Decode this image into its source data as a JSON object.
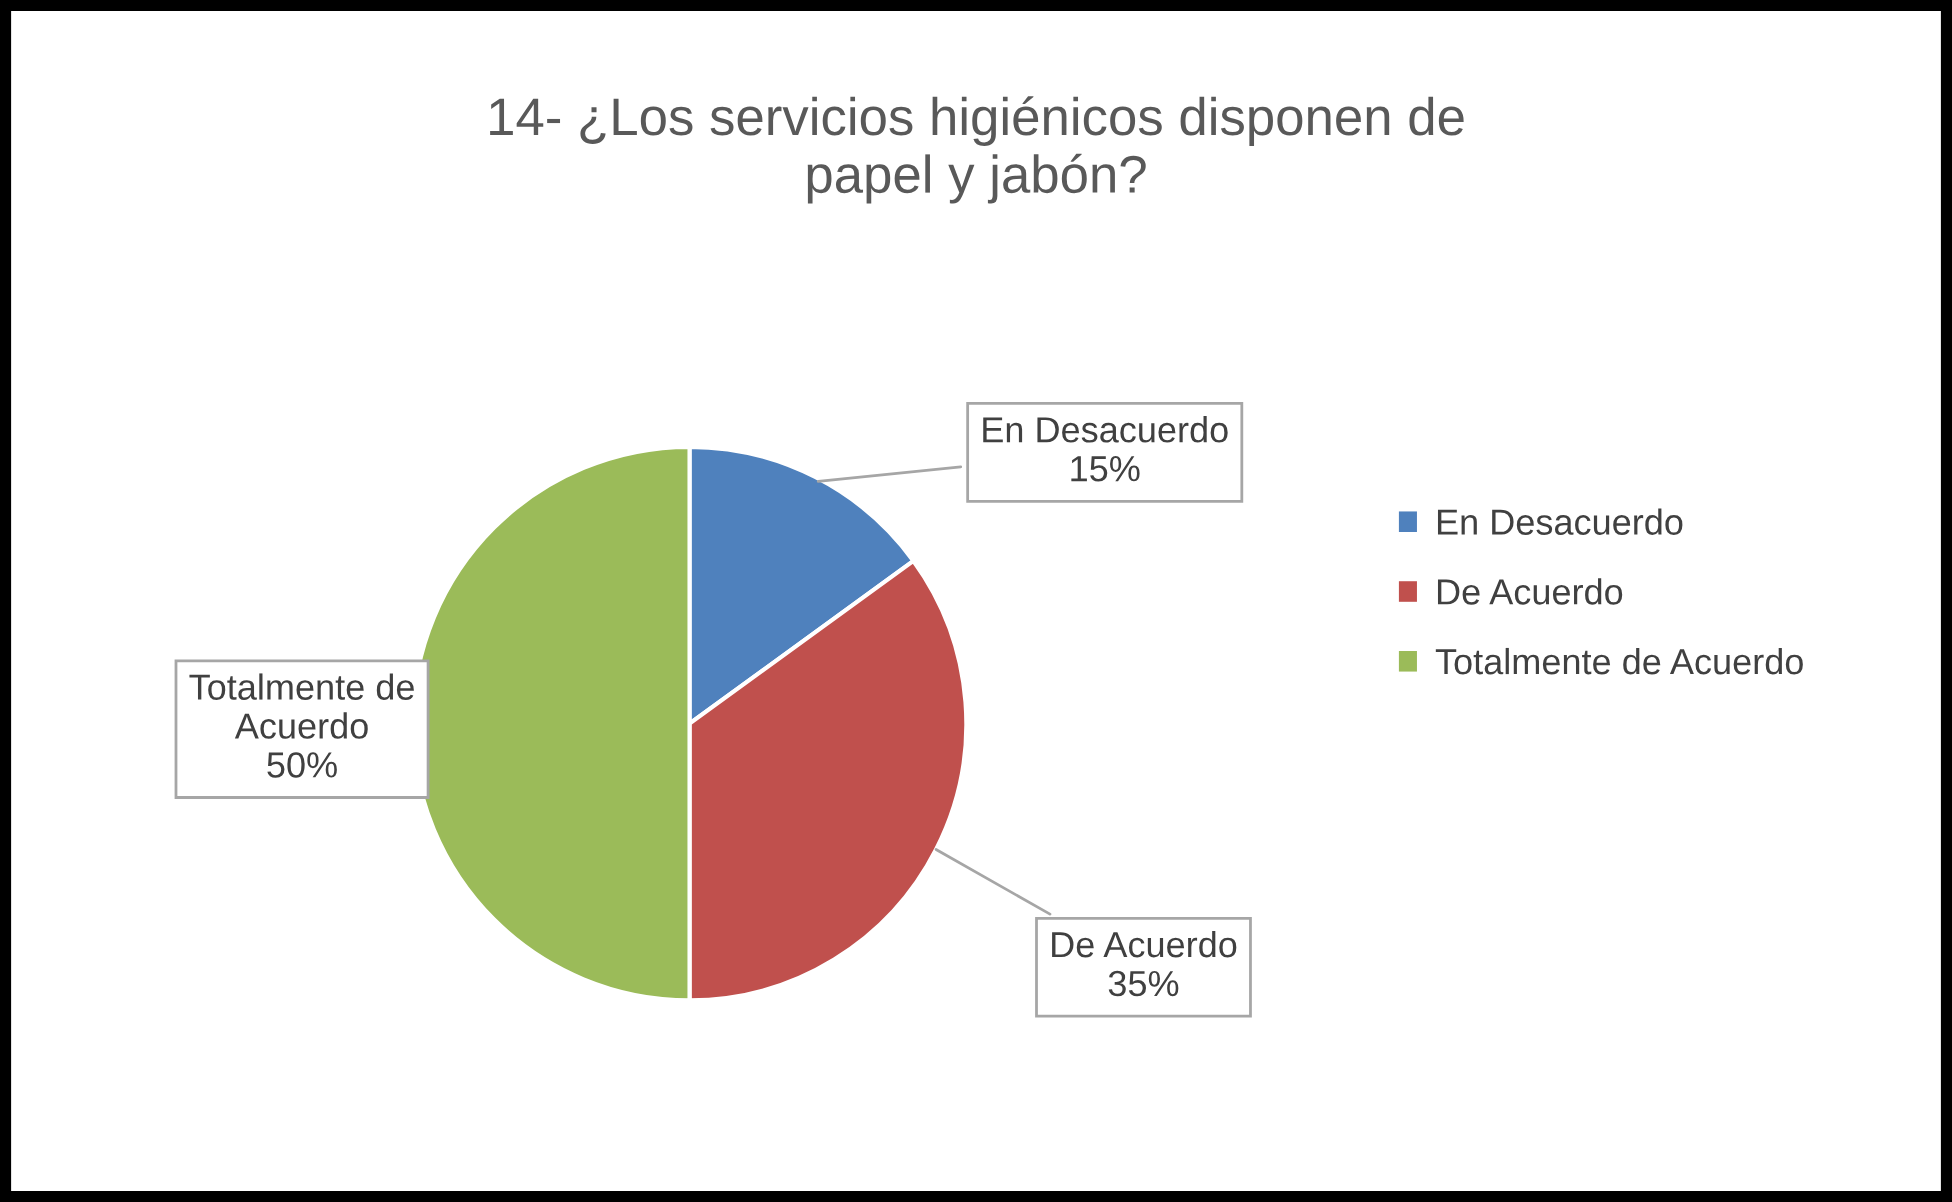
{
  "chart_data": {
    "type": "pie",
    "title": "14- ¿Los servicios higiénicos disponen de\npapel y jabón?",
    "categories": [
      "En Desacuerdo",
      "De Acuerdo",
      "Totalmente de Acuerdo"
    ],
    "values": [
      15,
      35,
      50
    ],
    "colors": [
      "#4f81bd",
      "#c0504d",
      "#9bbb59"
    ],
    "value_labels": [
      "15%",
      "35%",
      "50%"
    ],
    "annotations": [
      {
        "text": "Totalmente de\nAcuerdo",
        "x": "Totalmente de Acuerdo"
      }
    ],
    "legend": "right"
  }
}
